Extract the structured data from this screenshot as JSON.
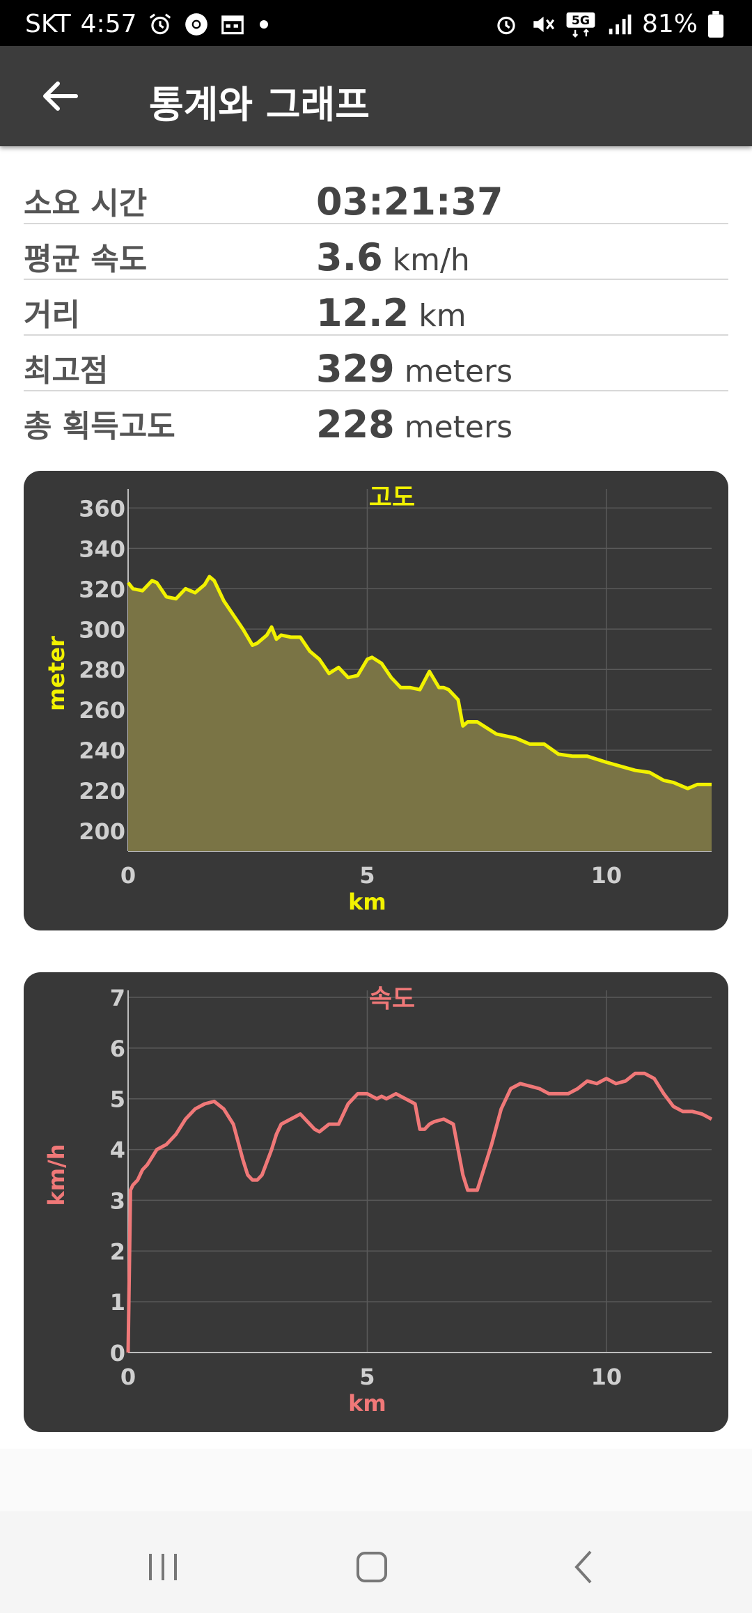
{
  "status_bar": {
    "carrier": "SKT",
    "time": "4:57",
    "battery": "81%",
    "network": "5G"
  },
  "app_bar": {
    "title": "통계와 그래프",
    "back_icon": "arrow-left-icon"
  },
  "stats": [
    {
      "label": "소요 시간",
      "value": "03:21:37",
      "unit": ""
    },
    {
      "label": "평균 속도",
      "value": "3.6",
      "unit": "km/h"
    },
    {
      "label": "거리",
      "value": "12.2",
      "unit": "km"
    },
    {
      "label": "최고점",
      "value": "329",
      "unit": "meters"
    },
    {
      "label": "총 획득고도",
      "value": "228",
      "unit": "meters"
    }
  ],
  "colors": {
    "altitude": "#f2f200",
    "speed": "#f07878",
    "card_bg": "#383838"
  },
  "chart_data": [
    {
      "type": "area",
      "title": "고도",
      "xlabel": "km",
      "ylabel": "meter",
      "xlim": [
        0,
        12.2
      ],
      "ylim": [
        190,
        366
      ],
      "xticks": [
        0,
        5,
        10
      ],
      "yticks": [
        200,
        220,
        240,
        260,
        280,
        300,
        320,
        340,
        360
      ],
      "grid": true,
      "x": [
        0,
        0.1,
        0.3,
        0.5,
        0.6,
        0.8,
        1.0,
        1.2,
        1.4,
        1.6,
        1.7,
        1.8,
        2.0,
        2.2,
        2.4,
        2.6,
        2.7,
        2.9,
        3.0,
        3.1,
        3.2,
        3.4,
        3.6,
        3.8,
        4.0,
        4.2,
        4.4,
        4.6,
        4.8,
        5.0,
        5.1,
        5.3,
        5.5,
        5.7,
        5.9,
        6.1,
        6.3,
        6.5,
        6.6,
        6.7,
        6.9,
        7.0,
        7.1,
        7.3,
        7.5,
        7.7,
        7.9,
        8.1,
        8.4,
        8.7,
        9.0,
        9.3,
        9.6,
        10.0,
        10.3,
        10.6,
        10.9,
        11.2,
        11.4,
        11.6,
        11.7,
        11.9,
        12.0,
        12.2
      ],
      "y": [
        323,
        320,
        319,
        324,
        323,
        316,
        315,
        320,
        318,
        322,
        326,
        324,
        314,
        307,
        300,
        292,
        293,
        297,
        301,
        295,
        297,
        296,
        296,
        289,
        285,
        278,
        281,
        276,
        277,
        285,
        286,
        283,
        276,
        271,
        271,
        270,
        279,
        271,
        271,
        270,
        265,
        252,
        254,
        254,
        251,
        248,
        247,
        246,
        243,
        243,
        238,
        237,
        237,
        234,
        232,
        230,
        229,
        225,
        224,
        222,
        221,
        223,
        223,
        223
      ]
    },
    {
      "type": "line",
      "title": "속도",
      "xlabel": "km",
      "ylabel": "km/h",
      "xlim": [
        0,
        12.2
      ],
      "ylim": [
        0,
        7
      ],
      "xticks": [
        0,
        5,
        10
      ],
      "yticks": [
        0,
        1,
        2,
        3,
        4,
        5,
        6,
        7
      ],
      "grid": true,
      "x": [
        0,
        0.05,
        0.1,
        0.2,
        0.3,
        0.4,
        0.6,
        0.8,
        1.0,
        1.2,
        1.4,
        1.5,
        1.6,
        1.8,
        2.0,
        2.2,
        2.4,
        2.5,
        2.6,
        2.7,
        2.8,
        3.0,
        3.1,
        3.2,
        3.4,
        3.6,
        3.8,
        3.9,
        4.0,
        4.2,
        4.3,
        4.4,
        4.6,
        4.8,
        5.0,
        5.2,
        5.3,
        5.4,
        5.6,
        5.8,
        6.0,
        6.1,
        6.2,
        6.3,
        6.4,
        6.6,
        6.8,
        7.0,
        7.1,
        7.3,
        7.5,
        7.6,
        7.8,
        8.0,
        8.2,
        8.4,
        8.6,
        8.8,
        9.0,
        9.2,
        9.4,
        9.6,
        9.8,
        10.0,
        10.2,
        10.4,
        10.6,
        10.8,
        11.0,
        11.2,
        11.4,
        11.6,
        11.8,
        12.0,
        12.2
      ],
      "y": [
        0,
        3.2,
        3.3,
        3.4,
        3.6,
        3.7,
        4.0,
        4.1,
        4.3,
        4.6,
        4.8,
        4.85,
        4.9,
        4.95,
        4.8,
        4.5,
        3.8,
        3.5,
        3.4,
        3.4,
        3.5,
        4.0,
        4.3,
        4.5,
        4.6,
        4.7,
        4.5,
        4.4,
        4.35,
        4.5,
        4.5,
        4.5,
        4.9,
        5.1,
        5.1,
        5.0,
        5.05,
        5.0,
        5.1,
        5.0,
        4.9,
        4.4,
        4.4,
        4.5,
        4.55,
        4.6,
        4.5,
        3.5,
        3.2,
        3.2,
        3.8,
        4.1,
        4.8,
        5.2,
        5.3,
        5.25,
        5.2,
        5.1,
        5.1,
        5.1,
        5.2,
        5.35,
        5.3,
        5.4,
        5.3,
        5.35,
        5.5,
        5.5,
        5.4,
        5.1,
        4.85,
        4.75,
        4.75,
        4.7,
        4.6
      ]
    }
  ],
  "nav_bar": {
    "recents": "recents-icon",
    "home": "home-icon",
    "back": "back-icon"
  }
}
